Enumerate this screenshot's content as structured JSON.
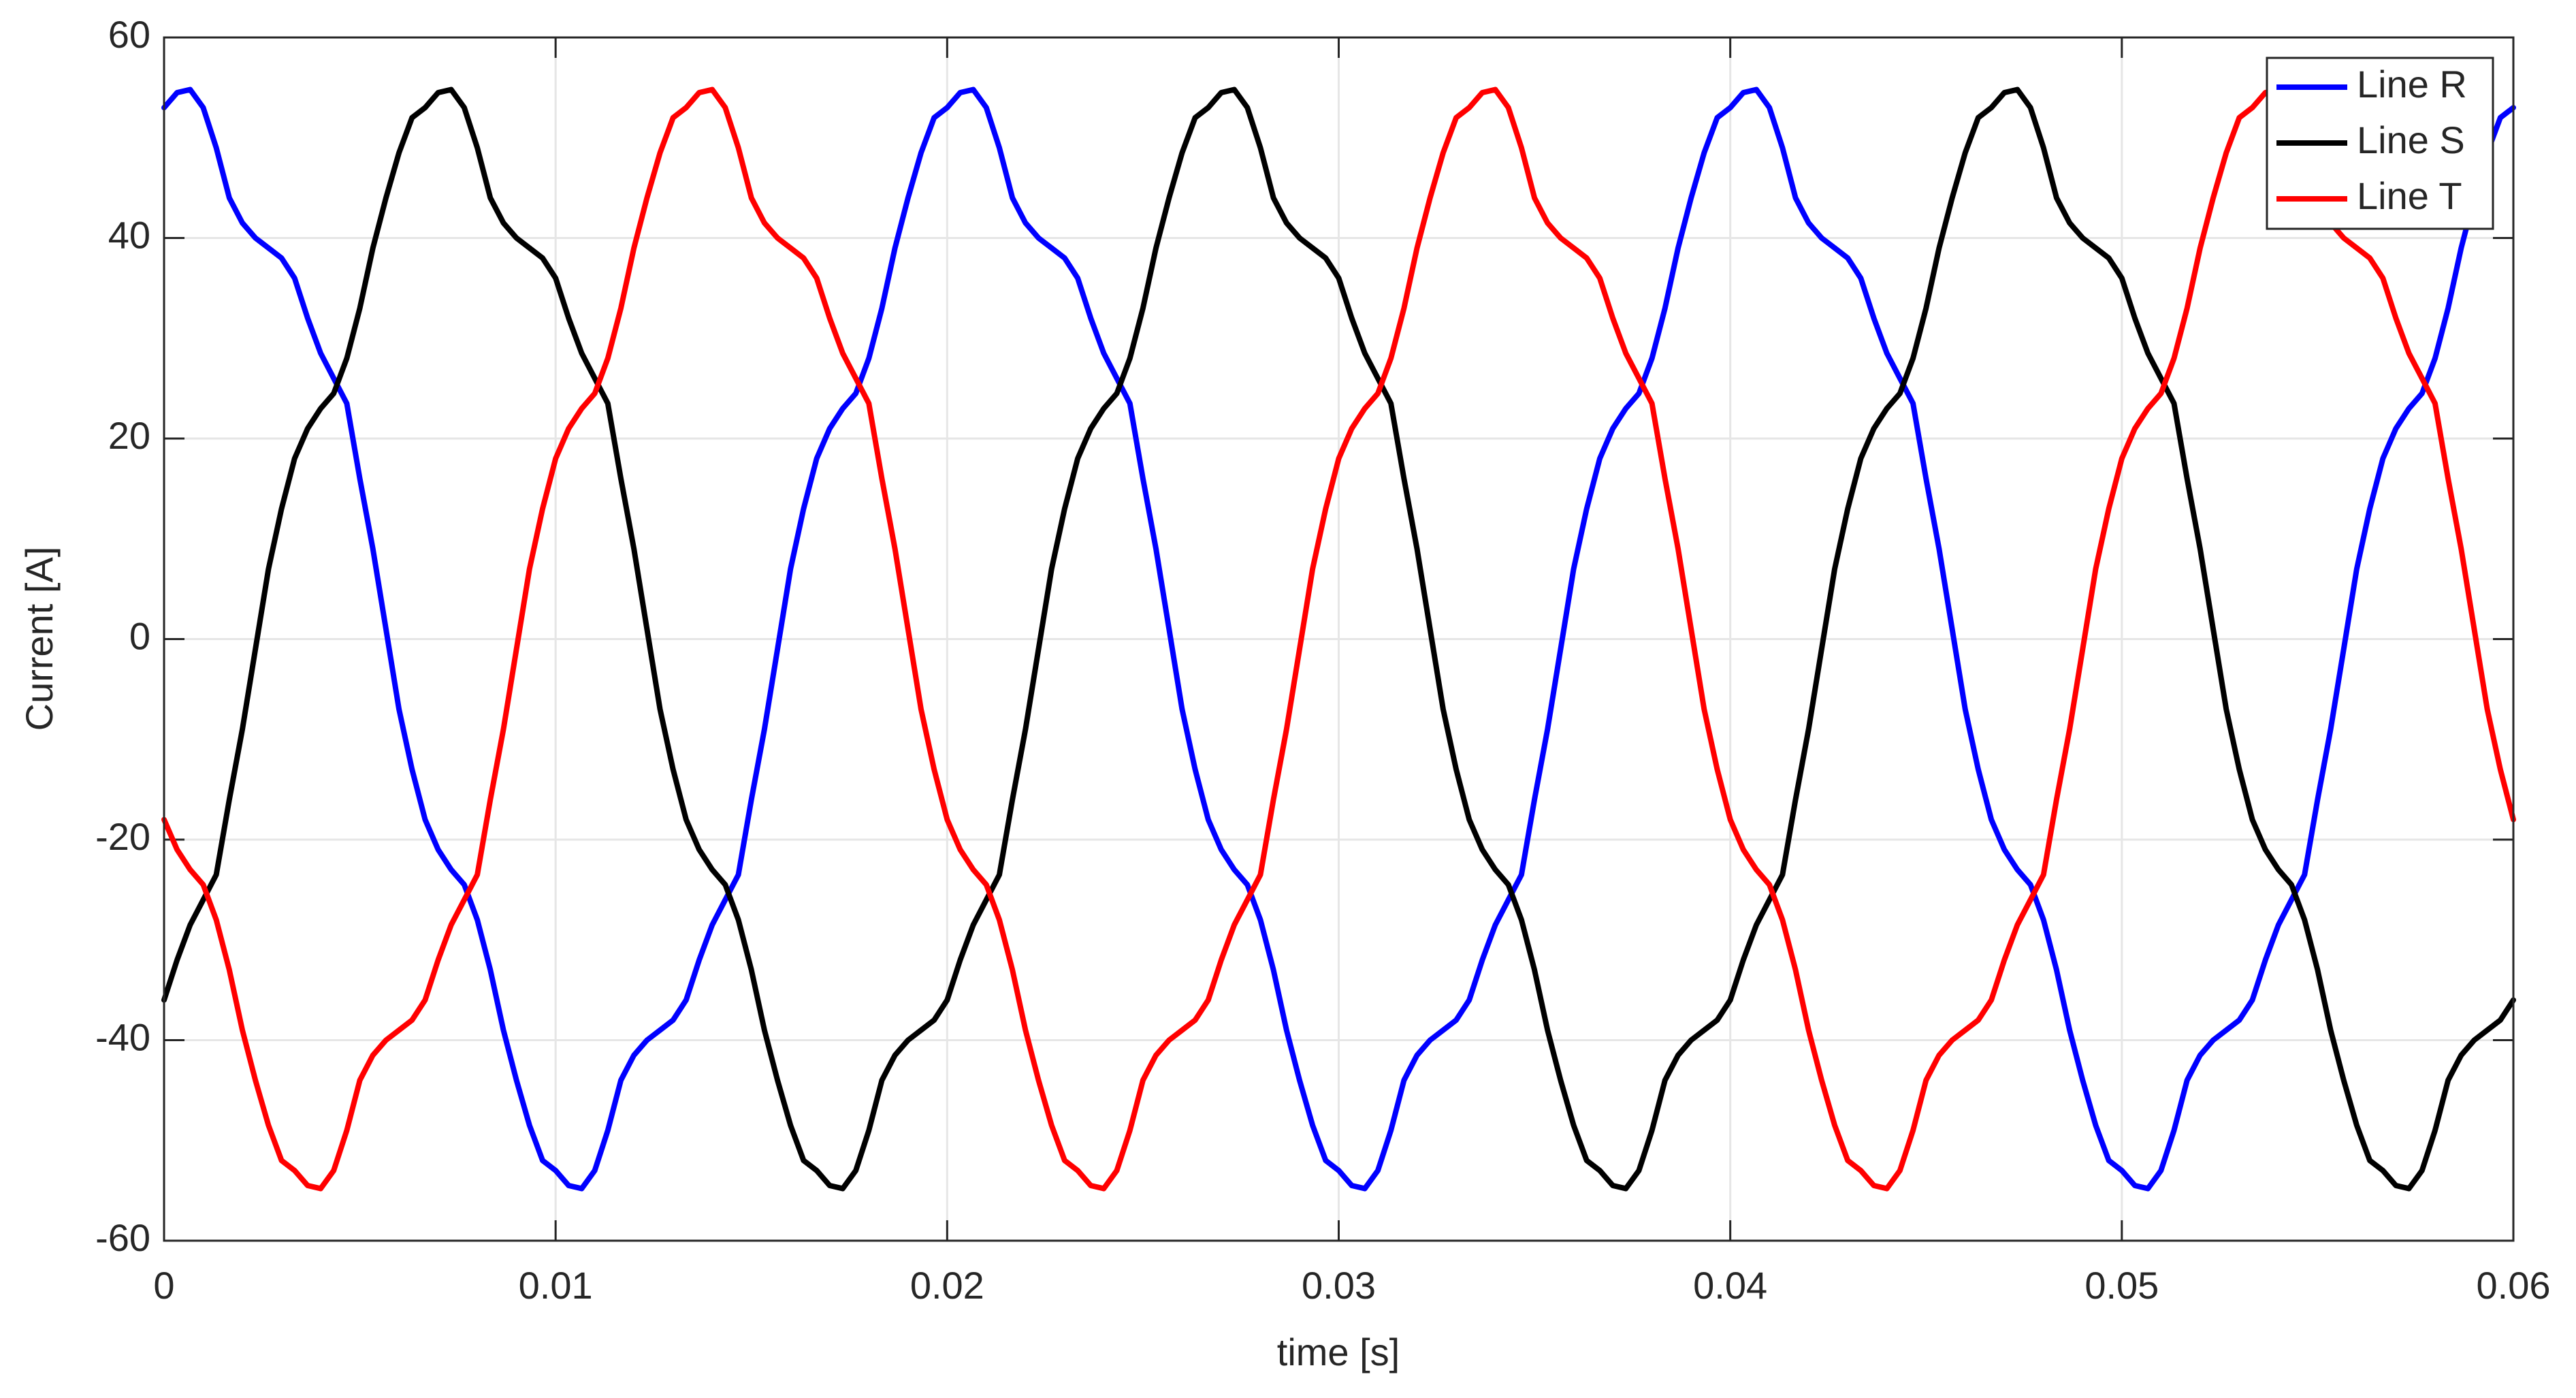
{
  "chart_data": {
    "type": "line",
    "xlabel": "time [s]",
    "ylabel": "Current [A]",
    "xlim": [
      0,
      0.06
    ],
    "xticks": [
      0,
      0.01,
      0.02,
      0.03,
      0.04,
      0.05,
      0.06
    ],
    "ylim": [
      -60,
      60
    ],
    "yticks": [
      -60,
      -40,
      -20,
      0,
      20,
      40,
      60
    ],
    "grid": true,
    "legend": "northeast",
    "x": [
      0,
      0.000333,
      0.000667,
      0.001,
      0.001333,
      0.001667,
      0.002,
      0.002333,
      0.002667,
      0.003,
      0.003333,
      0.003667,
      0.004,
      0.004333,
      0.004667,
      0.005,
      0.005333,
      0.005667,
      0.006,
      0.006333,
      0.006667,
      0.007,
      0.007333,
      0.007667,
      0.008,
      0.008333,
      0.008667,
      0.009,
      0.009333,
      0.009667,
      0.01,
      0.010333,
      0.010667,
      0.011,
      0.011333,
      0.011667,
      0.012,
      0.012333,
      0.012667,
      0.013,
      0.013333,
      0.013667,
      0.014,
      0.014333,
      0.014667,
      0.015,
      0.015333,
      0.015667,
      0.016,
      0.016333,
      0.016667,
      0.017,
      0.017333,
      0.017667,
      0.018,
      0.018333,
      0.018667,
      0.019,
      0.019333,
      0.019667,
      0.02,
      0.020333,
      0.020667,
      0.021,
      0.021333,
      0.021667,
      0.022,
      0.022333,
      0.022667,
      0.023,
      0.023333,
      0.023667,
      0.024,
      0.024333,
      0.024667,
      0.025,
      0.025333,
      0.025667,
      0.026,
      0.026333,
      0.026667,
      0.027,
      0.027333,
      0.027667,
      0.028,
      0.028333,
      0.028667,
      0.029,
      0.029333,
      0.029667,
      0.03,
      0.030333,
      0.030667,
      0.031,
      0.031333,
      0.031667,
      0.032,
      0.032333,
      0.032667,
      0.033,
      0.033333,
      0.033667,
      0.034,
      0.034333,
      0.034667,
      0.035,
      0.035333,
      0.035667,
      0.036,
      0.036333,
      0.036667,
      0.037,
      0.037333,
      0.037667,
      0.038,
      0.038333,
      0.038667,
      0.039,
      0.039333,
      0.039667,
      0.04,
      0.040333,
      0.040667,
      0.041,
      0.041333,
      0.041667,
      0.042,
      0.042333,
      0.042667,
      0.043,
      0.043333,
      0.043667,
      0.044,
      0.044333,
      0.044667,
      0.045,
      0.045333,
      0.045667,
      0.046,
      0.046333,
      0.046667,
      0.047,
      0.047333,
      0.047667,
      0.048,
      0.048333,
      0.048667,
      0.049,
      0.049333,
      0.049667,
      0.05,
      0.050333,
      0.050667,
      0.051,
      0.051333,
      0.051667,
      0.052,
      0.052333,
      0.052667,
      0.053,
      0.053333,
      0.053667,
      0.054,
      0.054333,
      0.054667,
      0.055,
      0.055333,
      0.055667,
      0.056,
      0.056333,
      0.056667,
      0.057,
      0.057333,
      0.057667,
      0.058,
      0.058333,
      0.058667,
      0.059,
      0.059333,
      0.059667,
      0.06
    ],
    "series": [
      {
        "name": "Line R",
        "color": "#0000ff",
        "values": [
          53,
          54.5,
          54.8,
          53,
          49,
          44,
          41.5,
          40,
          39,
          38,
          36,
          32,
          28.5,
          26,
          23.5,
          16,
          9,
          1,
          -7,
          -13,
          -18,
          -21,
          -23,
          -24.5,
          -28,
          -33,
          -39,
          -44,
          -48.5,
          -52,
          -53,
          -54.5,
          -54.8,
          -53,
          -49,
          -44,
          -41.5,
          -40,
          -39,
          -38,
          -36,
          -32,
          -28.5,
          -26,
          -23.5,
          -16,
          -9,
          -1,
          7,
          13,
          18,
          21,
          23,
          24.5,
          28,
          33,
          39,
          44,
          48.5,
          52,
          53,
          54.5,
          54.8,
          53,
          49,
          44,
          41.5,
          40,
          39,
          38,
          36,
          32,
          28.5,
          26,
          23.5,
          16,
          9,
          1,
          -7,
          -13,
          -18,
          -21,
          -23,
          -24.5,
          -28,
          -33,
          -39,
          -44,
          -48.5,
          -52,
          -53,
          -54.5,
          -54.8,
          -53,
          -49,
          -44,
          -41.5,
          -40,
          -39,
          -38,
          -36,
          -32,
          -28.5,
          -26,
          -23.5,
          -16,
          -9,
          -1,
          7,
          13,
          18,
          21,
          23,
          24.5,
          28,
          33,
          39,
          44,
          48.5,
          52,
          53,
          54.5,
          54.8,
          53,
          49,
          44,
          41.5,
          40,
          39,
          38,
          36,
          32,
          28.5,
          26,
          23.5,
          16,
          9,
          1,
          -7,
          -13,
          -18,
          -21,
          -23,
          -24.5,
          -28,
          -33,
          -39,
          -44,
          -48.5,
          -52,
          -53,
          -54.5,
          -54.8,
          -53,
          -49,
          -44,
          -41.5,
          -40,
          -39,
          -38,
          -36,
          -32,
          -28.5,
          -26,
          -23.5,
          -16,
          -9,
          -1,
          7,
          13,
          18,
          21,
          23,
          24.5,
          28,
          33,
          39,
          44,
          48.5,
          52,
          53
        ]
      },
      {
        "name": "Line S",
        "color": "#000000",
        "values": [
          -36,
          -32,
          -28.5,
          -26,
          -23.5,
          -16,
          -9,
          -1,
          7,
          13,
          18,
          21,
          23,
          24.5,
          28,
          33,
          39,
          44,
          48.5,
          52,
          53,
          54.5,
          54.8,
          53,
          49,
          44,
          41.5,
          40,
          39,
          38,
          36,
          32,
          28.5,
          26,
          23.5,
          16,
          9,
          1,
          -7,
          -13,
          -18,
          -21,
          -23,
          -24.5,
          -28,
          -33,
          -39,
          -44,
          -48.5,
          -52,
          -53,
          -54.5,
          -54.8,
          -53,
          -49,
          -44,
          -41.5,
          -40,
          -39,
          -38,
          -36,
          -32,
          -28.5,
          -26,
          -23.5,
          -16,
          -9,
          -1,
          7,
          13,
          18,
          21,
          23,
          24.5,
          28,
          33,
          39,
          44,
          48.5,
          52,
          53,
          54.5,
          54.8,
          53,
          49,
          44,
          41.5,
          40,
          39,
          38,
          36,
          32,
          28.5,
          26,
          23.5,
          16,
          9,
          1,
          -7,
          -13,
          -18,
          -21,
          -23,
          -24.5,
          -28,
          -33,
          -39,
          -44,
          -48.5,
          -52,
          -53,
          -54.5,
          -54.8,
          -53,
          -49,
          -44,
          -41.5,
          -40,
          -39,
          -38,
          -36,
          -32,
          -28.5,
          -26,
          -23.5,
          -16,
          -9,
          -1,
          7,
          13,
          18,
          21,
          23,
          24.5,
          28,
          33,
          39,
          44,
          48.5,
          52,
          53,
          54.5,
          54.8,
          53,
          49,
          44,
          41.5,
          40,
          39,
          38,
          36,
          32,
          28.5,
          26,
          23.5,
          16,
          9,
          1,
          -7,
          -13,
          -18,
          -21,
          -23,
          -24.5,
          -28,
          -33,
          -39,
          -44,
          -48.5,
          -52,
          -53,
          -54.5,
          -54.8,
          -53,
          -49,
          -44,
          -41.5,
          -40,
          -39,
          -38,
          -36
        ]
      },
      {
        "name": "Line T",
        "color": "#ff0000",
        "values": [
          -18,
          -21,
          -23,
          -24.5,
          -28,
          -33,
          -39,
          -44,
          -48.5,
          -52,
          -53,
          -54.5,
          -54.8,
          -53,
          -49,
          -44,
          -41.5,
          -40,
          -39,
          -38,
          -36,
          -32,
          -28.5,
          -26,
          -23.5,
          -16,
          -9,
          -1,
          7,
          13,
          18,
          21,
          23,
          24.5,
          28,
          33,
          39,
          44,
          48.5,
          52,
          53,
          54.5,
          54.8,
          53,
          49,
          44,
          41.5,
          40,
          39,
          38,
          36,
          32,
          28.5,
          26,
          23.5,
          16,
          9,
          1,
          -7,
          -13,
          -18,
          -21,
          -23,
          -24.5,
          -28,
          -33,
          -39,
          -44,
          -48.5,
          -52,
          -53,
          -54.5,
          -54.8,
          -53,
          -49,
          -44,
          -41.5,
          -40,
          -39,
          -38,
          -36,
          -32,
          -28.5,
          -26,
          -23.5,
          -16,
          -9,
          -1,
          7,
          13,
          18,
          21,
          23,
          24.5,
          28,
          33,
          39,
          44,
          48.5,
          52,
          53,
          54.5,
          54.8,
          53,
          49,
          44,
          41.5,
          40,
          39,
          38,
          36,
          32,
          28.5,
          26,
          23.5,
          16,
          9,
          1,
          -7,
          -13,
          -18,
          -21,
          -23,
          -24.5,
          -28,
          -33,
          -39,
          -44,
          -48.5,
          -52,
          -53,
          -54.5,
          -54.8,
          -53,
          -49,
          -44,
          -41.5,
          -40,
          -39,
          -38,
          -36,
          -32,
          -28.5,
          -26,
          -23.5,
          -16,
          -9,
          -1,
          7,
          13,
          18,
          21,
          23,
          24.5,
          28,
          33,
          39,
          44,
          48.5,
          52,
          53,
          54.5,
          54.8,
          53,
          49,
          44,
          41.5,
          40,
          39,
          38,
          36,
          32,
          28.5,
          26,
          23.5,
          16,
          9,
          1,
          -7,
          -13,
          -18
        ]
      }
    ]
  }
}
